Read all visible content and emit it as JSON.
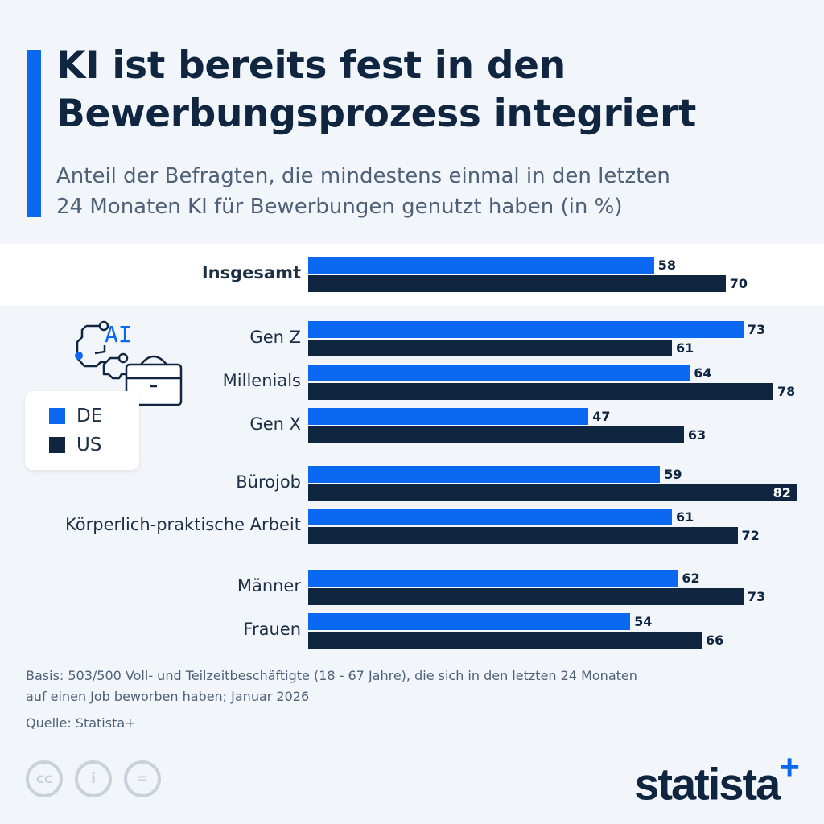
{
  "header": {
    "title_line1": "KI ist bereits fest in den",
    "title_line2": "Bewerbungsprozess integriert",
    "subtitle_line1": "Anteil der Befragten, die mindestens einmal in den letzten",
    "subtitle_line2": "24 Monaten KI für Bewerbungen genutzt haben (in %)"
  },
  "colors": {
    "DE": "#0b68f0",
    "US": "#0f2540",
    "accent": "#0b68f0"
  },
  "legend": {
    "de": "DE",
    "us": "US"
  },
  "illustration": {
    "text": "AI"
  },
  "chart_data": {
    "type": "bar",
    "orientation": "horizontal",
    "xlim": [
      0,
      100
    ],
    "grid": false,
    "legend_position": "left",
    "categories": [
      "Insgesamt",
      "Gen Z",
      "Millenials",
      "Gen X",
      "Bürojob",
      "Körperlich-praktische Arbeit",
      "Männer",
      "Frauen"
    ],
    "series": [
      {
        "name": "DE",
        "values": [
          58,
          73,
          64,
          47,
          59,
          61,
          62,
          54
        ]
      },
      {
        "name": "US",
        "values": [
          70,
          61,
          78,
          63,
          82,
          72,
          73,
          66
        ]
      }
    ]
  },
  "footer": {
    "basis_line1": "Basis: 503/500 Voll- und Teilzeitbeschäftigte (18 - 67 Jahre), die sich in den letzten 24 Monaten",
    "basis_line2": "auf einen Job beworben haben; Januar 2026",
    "source": "Quelle: Statista+",
    "logo": "statista",
    "logo_plus": "+",
    "cc_icons": [
      "cc",
      "by",
      "nd"
    ]
  }
}
